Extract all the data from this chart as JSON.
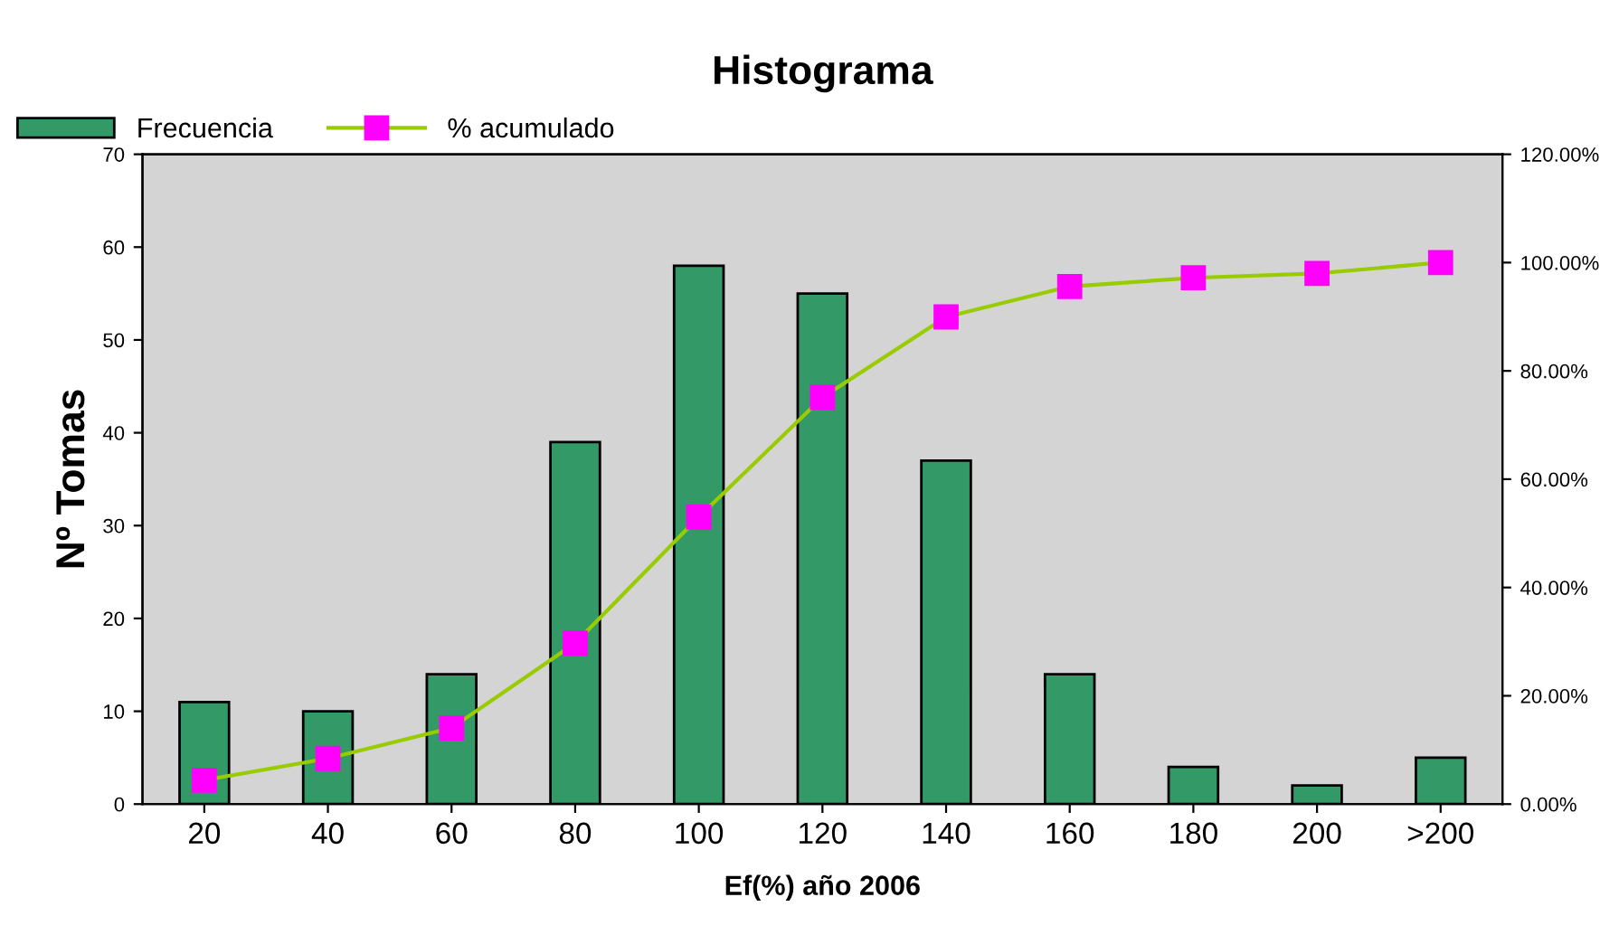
{
  "chart_data": {
    "type": "bar",
    "title": "Histograma",
    "xlabel": "Ef(%) año 2006",
    "ylabel": "Nº Tomas",
    "categories": [
      "20",
      "40",
      "60",
      "80",
      "100",
      "120",
      "140",
      "160",
      "180",
      "200",
      ">200"
    ],
    "series": [
      {
        "name": "Frecuencia",
        "color": "#339966",
        "values": [
          11,
          10,
          14,
          39,
          58,
          55,
          37,
          14,
          4,
          2,
          5
        ]
      },
      {
        "name": "% acumulado",
        "type": "line",
        "axis": "y2",
        "color": "#99cc00",
        "marker": "square",
        "values": [
          4.42,
          8.43,
          14.06,
          29.72,
          53.01,
          75.1,
          89.96,
          95.58,
          97.19,
          97.99,
          100.0
        ]
      }
    ],
    "ylim": [
      0,
      70
    ],
    "yticks": [
      0,
      10,
      20,
      30,
      40,
      50,
      60,
      70
    ],
    "y2lim": [
      0,
      120
    ],
    "y2ticks": [
      {
        "value": 0,
        "label": "0.00%"
      },
      {
        "value": 20,
        "label": "20.00%"
      },
      {
        "value": 40,
        "label": "40.00%"
      },
      {
        "value": 60,
        "label": "60.00%"
      },
      {
        "value": 80,
        "label": "80.00%"
      },
      {
        "value": 100,
        "label": "100.00%"
      },
      {
        "value": 120,
        "label": "120.00%"
      }
    ],
    "grid": false,
    "legend": "top left"
  }
}
